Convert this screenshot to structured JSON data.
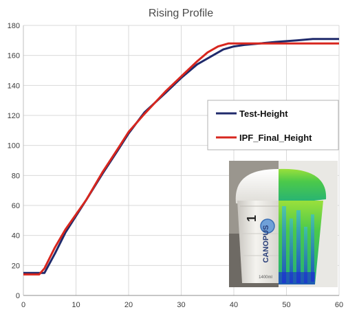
{
  "chart_data": {
    "type": "line",
    "title": "Rising Profile",
    "xlabel": "",
    "ylabel": "",
    "xlim": [
      0,
      60
    ],
    "ylim": [
      0,
      180
    ],
    "xticks": [
      0,
      10,
      20,
      30,
      40,
      50,
      60
    ],
    "yticks": [
      0,
      20,
      40,
      60,
      80,
      100,
      120,
      140,
      160,
      180
    ],
    "grid": true,
    "legend_position": "right",
    "series": [
      {
        "name": "Test-Height",
        "color": "#1f2a6b",
        "x": [
          0,
          3,
          4,
          6,
          8,
          10,
          12,
          15,
          18,
          20,
          23,
          27,
          30,
          33,
          36,
          38,
          40,
          42,
          45,
          48,
          52,
          55,
          58,
          60
        ],
        "y": [
          15,
          15,
          15,
          28,
          42,
          53,
          64,
          81,
          97,
          108,
          122,
          135,
          145,
          154,
          160,
          164,
          166,
          167,
          168,
          169,
          170,
          171,
          171,
          171
        ]
      },
      {
        "name": "IPF_Final_Height",
        "color": "#d7261e",
        "x": [
          0,
          3,
          4,
          6,
          8,
          10,
          12,
          15,
          18,
          20,
          23,
          27,
          30,
          33,
          35,
          37,
          39,
          41,
          45,
          50,
          55,
          60
        ],
        "y": [
          14,
          14,
          18,
          32,
          44,
          54,
          64,
          82,
          98,
          109,
          121,
          136,
          146,
          156,
          162,
          166,
          168,
          168,
          168,
          168,
          168,
          168
        ]
      }
    ]
  },
  "inset": {
    "icon": "foam-cup-photo-and-simulation",
    "cup_number": "1",
    "brand": "CANOPUS",
    "volume_mark": "1400ml"
  }
}
